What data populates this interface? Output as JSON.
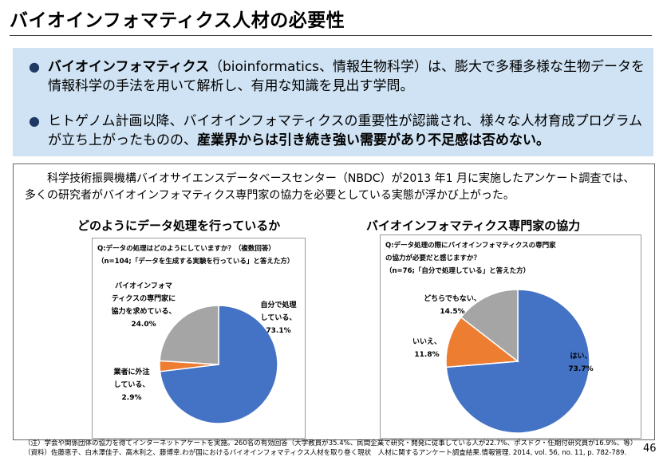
{
  "title": "バイオインフォマティクス人材の必要性",
  "summary": {
    "bullet1": {
      "bold": "バイオインフォマティクス",
      "rest": "（bioinformatics、情報生物科学）は、膨大で多種多様な生物データを情報科学の手法を用いて解析し、有用な知識を見出す学問。"
    },
    "bullet2": {
      "plain": "ヒトゲノム計画以降、バイオインフォマティクスの重要性が認識され、様々な人材育成プログラムが立ち上がったものの、",
      "bold": "産業界からは引き続き強い需要があり不足感は否めない。"
    }
  },
  "intro": "科学技術振興機構バイオサイエンスデータベースセンター（NBDC）が2013 年1 月に実施したアンケート調査では、多くの研究者がバイオインフォマティクス専門家の協力を必要としている実態が浮かび上がった。",
  "chart_data": [
    {
      "type": "pie",
      "title": "どのようにデータ処理を行っているか",
      "question_line1": "Q:データの処理はどのようにしていますか？（複数回答）",
      "question_line2": "（n=104;「データを生成する実験を行っている」と答えた方）",
      "slices": [
        {
          "label": "自分で処理している、",
          "value": 73.1,
          "display": "73.1%",
          "color": "#4472c4"
        },
        {
          "label": "業者に外注している、",
          "value": 2.9,
          "display": "2.9%",
          "color": "#ed7d31"
        },
        {
          "label": "バイオインフォマティクスの専門家に協力を求めている、",
          "value": 24.0,
          "display": "24.0%",
          "color": "#a5a5a5"
        }
      ]
    },
    {
      "type": "pie",
      "title": "バイオインフォマティクス専門家の協力",
      "question_line1": "Q:データ処理の際にバイオインフォマティクスの専門家",
      "question_line2": "の協力が必要だと感じますか？",
      "question_line3": "（n=76;「自分で処理している」と答えた方）",
      "slices": [
        {
          "label": "はい、",
          "value": 73.7,
          "display": "73.7%",
          "color": "#4472c4"
        },
        {
          "label": "いいえ、",
          "value": 11.8,
          "display": "11.8%",
          "color": "#ed7d31"
        },
        {
          "label": "どちらでもない、",
          "value": 14.5,
          "display": "14.5%",
          "color": "#a5a5a5"
        }
      ]
    }
  ],
  "labels1": {
    "self": "自分で処理\nしている、\n73.1%",
    "outsource": "業者に外注\nしている、\n2.9%",
    "expert": "バイオインフォマ\nティクスの専門家に\n協力を求めている、\n24.0%"
  },
  "labels2": {
    "yes": "はい、\n73.7%",
    "no": "いいえ、\n11.8%",
    "neither": "どちらでもない、\n14.5%"
  },
  "notes": {
    "line1": "（注）学会や関係団体の協力を得てインターネットアケートを実施。260名の有効回答（大学教員が35.4%、民間企業で研究・開発に従事している人が22.7%、ポスドク・任期付研究員が16.9%、等）",
    "line2": "（資料）佐藤恵子、白木澤佳子、高木利之、藤博幸.わが国におけるバイオインフォマティクス人材を取り巻く現状　人材に関するアンケート調査結果.情報管理. 2014, vol. 56, no. 11, p. 782-789."
  },
  "page_number": "46"
}
